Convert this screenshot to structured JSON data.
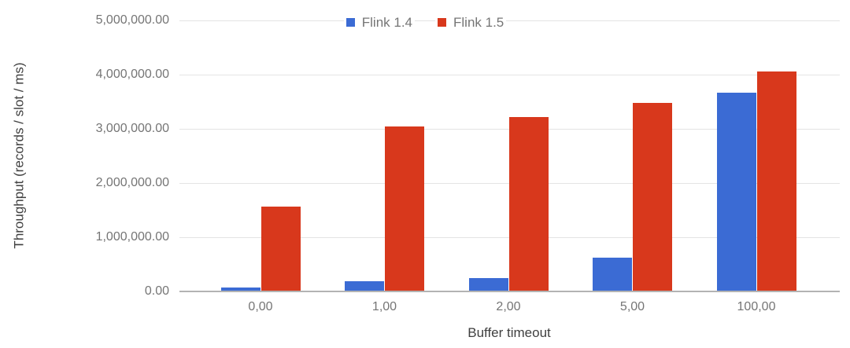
{
  "chart_data": {
    "type": "bar",
    "title": "",
    "categories": [
      "0,00",
      "1,00",
      "2,00",
      "5,00",
      "100,00"
    ],
    "series": [
      {
        "name": "Flink 1.4",
        "color": "#3b6bd4",
        "values": [
          70000,
          190000,
          250000,
          630000,
          3660000
        ]
      },
      {
        "name": "Flink 1.5",
        "color": "#d8381c",
        "values": [
          1570000,
          3040000,
          3220000,
          3480000,
          4060000
        ]
      }
    ],
    "xlabel": "Buffer timeout",
    "ylabel": "Throughput (records / slot / ms)",
    "ylim": [
      0,
      5000000
    ],
    "y_tick_values": [
      0,
      1000000,
      2000000,
      3000000,
      4000000,
      5000000
    ],
    "y_tick_labels": [
      "0.00",
      "1,000,000.00",
      "2,000,000.00",
      "3,000,000.00",
      "4,000,000.00",
      "5,000,000.00"
    ],
    "grid": true,
    "legend_position": "top"
  }
}
